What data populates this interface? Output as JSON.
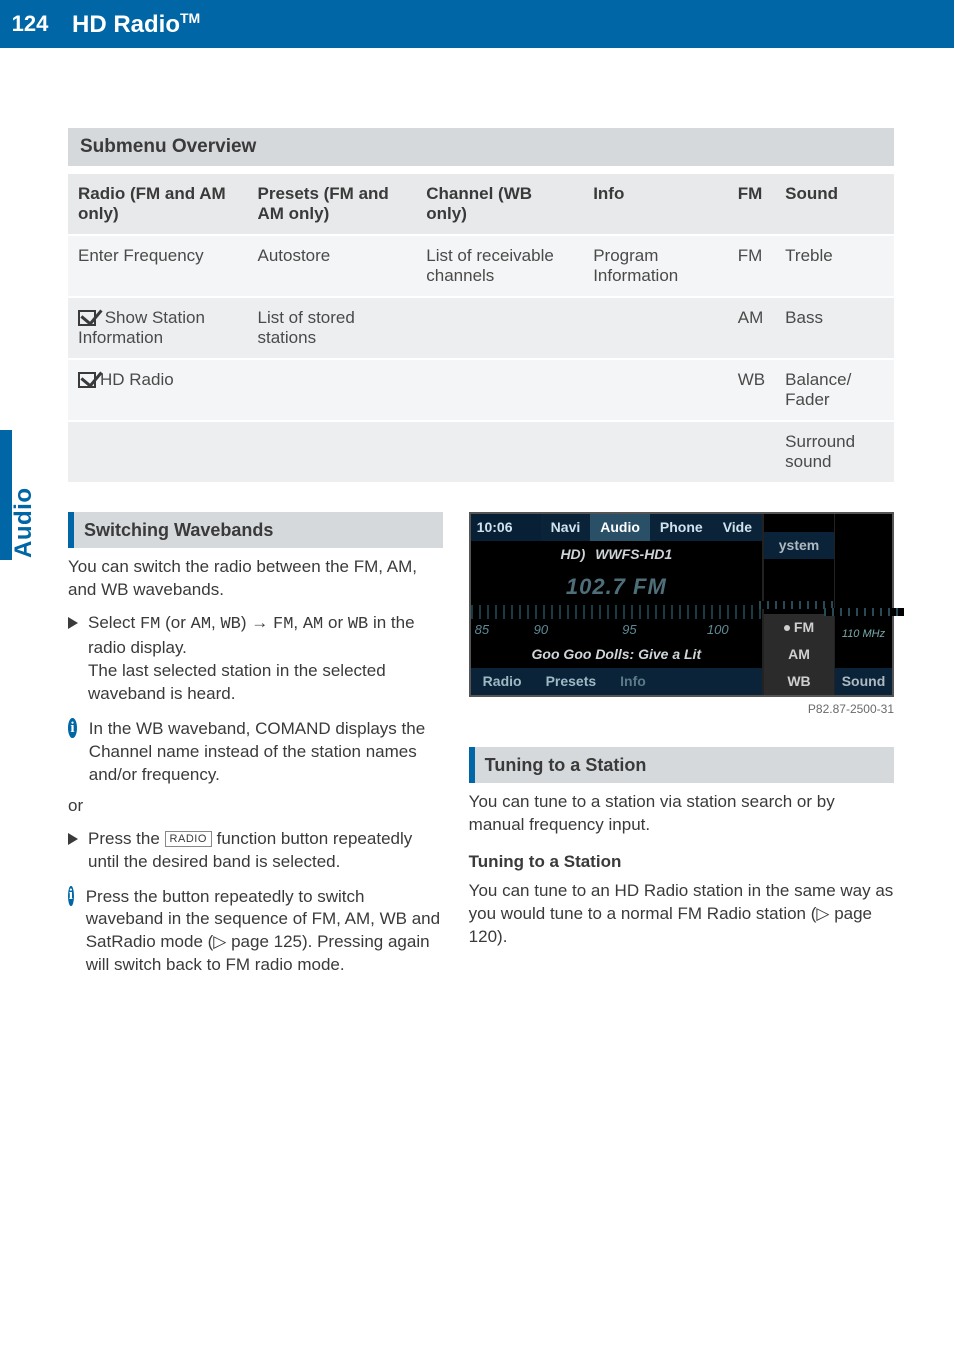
{
  "header": {
    "page_number": "124",
    "title_main": "HD Radio",
    "title_tm": "TM",
    "accent_color": "#0066a6"
  },
  "side_tab": "Audio",
  "table": {
    "title": "Submenu Overview",
    "columns": [
      "Radio (FM and AM only)",
      "Presets (FM and AM only)",
      "Channel (WB only)",
      "Info",
      "FM",
      "Sound"
    ],
    "rows": [
      [
        "Enter Frequency",
        "Autostore",
        "List of receivable channels",
        "Program Information",
        "FM",
        "Treble"
      ],
      [
        "[cb] Show Station Information",
        "List of stored stations",
        "",
        "",
        "AM",
        "Bass"
      ],
      [
        "[cb]HD Radio",
        "",
        "",
        "",
        "WB",
        "Balance/\nFader"
      ],
      [
        "",
        "",
        "",
        "",
        "",
        "Surround sound"
      ]
    ]
  },
  "left_column": {
    "section_title": "Switching Wavebands",
    "intro": "You can switch the radio between the FM, AM, and WB wavebands.",
    "step1_pre": "Select ",
    "step1_m1": "FM",
    "step1_mid1": " (or ",
    "step1_m2": "AM",
    "step1_mid2": ", ",
    "step1_m3": "WB",
    "step1_mid3": ") → ",
    "step1_m4": "FM",
    "step1_mid4": ", ",
    "step1_m5": "AM",
    "step1_mid5": " or ",
    "step1_m6": "WB",
    "step1_post": " in the radio display.",
    "step1_result": "The last selected station in the selected waveband is heard.",
    "info1": "In the WB waveband, COMAND displays the Channel name instead of the station names and/or frequency.",
    "or": "or",
    "step2_pre": "Press the ",
    "step2_key": "RADIO",
    "step2_post": " function button repeatedly until the desired band is selected.",
    "info2": "Press the button repeatedly to switch waveband in the sequence of FM, AM, WB and SatRadio mode (▷ page 125). Pressing again will switch back to FM radio mode."
  },
  "screenshot": {
    "clock": "10:06",
    "tabs": [
      "Navi",
      "Audio",
      "Phone",
      "Vide"
    ],
    "sys_label": "ystem",
    "hd_label": "HD)",
    "station": "WWFS-HD1",
    "frequency": "102.7 FM",
    "scale": [
      "85",
      "90",
      "95",
      "100"
    ],
    "right_scale_sel": "FM",
    "right_scale_unit": "110 MHz",
    "now_playing": "Goo Goo Dolls: Give a Lit",
    "bottom": [
      "Radio",
      "Presets",
      "Info"
    ],
    "right_mid": [
      "AM",
      "WB"
    ],
    "right_bottom": "Sound",
    "fig_id": "P82.87-2500-31"
  },
  "right_column": {
    "section_title": "Tuning to a Station",
    "intro": "You can tune to a station via station search or by manual frequency input.",
    "sub_heading": "Tuning to a Station",
    "para": "You can tune to an HD Radio station in the same way as you would tune to a normal FM Radio station (▷ page 120)."
  }
}
